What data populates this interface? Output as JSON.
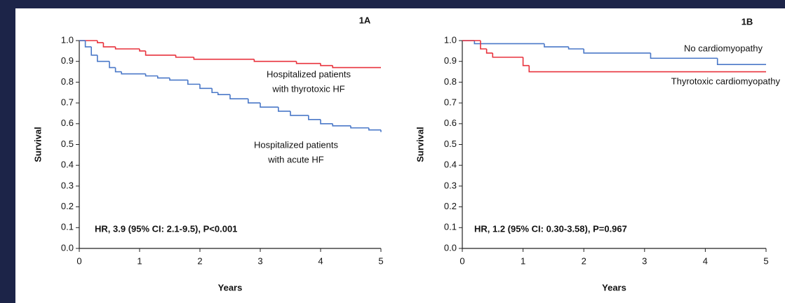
{
  "chart_data": [
    {
      "type": "step",
      "title": "1A",
      "ylabel": "Survival",
      "xlabel": "Years",
      "annotation": "HR, 3.9 (95% CI: 2.1-9.5), P<0.001",
      "xlim": [
        0,
        5
      ],
      "ylim": [
        0,
        1
      ],
      "xticks": [
        0,
        1,
        2,
        3,
        4,
        5
      ],
      "yticks": [
        {
          "value": 0,
          "label": "0.0"
        },
        0.1,
        0.2,
        0.3,
        0.4,
        0.5,
        0.6,
        0.7,
        0.8,
        0.9,
        {
          "value": 1,
          "label": "1.0"
        }
      ],
      "series": [
        {
          "label": [
            "Hospitalized patients",
            "with thyrotoxic HF"
          ],
          "color": "#e8323c",
          "x": [
            0,
            0.3,
            0.4,
            0.6,
            1.0,
            1.1,
            1.6,
            1.9,
            2.9,
            3.6,
            4.0,
            4.2,
            5.0
          ],
          "values": [
            1.0,
            0.99,
            0.97,
            0.96,
            0.95,
            0.93,
            0.92,
            0.91,
            0.9,
            0.89,
            0.88,
            0.87,
            0.87
          ]
        },
        {
          "label": [
            "Hospitalized patients",
            "with acute HF"
          ],
          "color": "#4a78c8",
          "x": [
            0,
            0.1,
            0.2,
            0.3,
            0.5,
            0.6,
            0.7,
            1.1,
            1.3,
            1.5,
            1.8,
            2.0,
            2.2,
            2.3,
            2.5,
            2.8,
            3.0,
            3.3,
            3.5,
            3.8,
            4.0,
            4.2,
            4.5,
            4.8,
            5.0
          ],
          "values": [
            1.0,
            0.97,
            0.93,
            0.9,
            0.87,
            0.85,
            0.84,
            0.83,
            0.82,
            0.81,
            0.79,
            0.77,
            0.75,
            0.74,
            0.72,
            0.7,
            0.68,
            0.66,
            0.64,
            0.62,
            0.6,
            0.59,
            0.58,
            0.57,
            0.56
          ]
        }
      ]
    },
    {
      "type": "step",
      "title": "1B",
      "ylabel": "Survival",
      "xlabel": "Years",
      "annotation": "HR, 1.2  (95% CI: 0.30-3.58), P=0.967",
      "xlim": [
        0,
        5
      ],
      "ylim": [
        0,
        1
      ],
      "xticks": [
        0,
        1,
        2,
        3,
        4,
        5
      ],
      "yticks": [
        {
          "value": 0,
          "label": "0.0"
        },
        0.1,
        0.2,
        0.3,
        0.4,
        0.5,
        0.6,
        0.7,
        0.8,
        0.9,
        {
          "value": 1,
          "label": "1.0"
        }
      ],
      "series": [
        {
          "label": [
            "No cardiomyopathy"
          ],
          "color": "#4a78c8",
          "x": [
            0,
            0.2,
            1.35,
            1.75,
            2.0,
            3.1,
            4.2,
            5.0
          ],
          "values": [
            1.0,
            0.985,
            0.97,
            0.96,
            0.94,
            0.915,
            0.885,
            0.885
          ]
        },
        {
          "label": [
            "Thyrotoxic cardiomyopathy"
          ],
          "color": "#e8323c",
          "x": [
            0,
            0.3,
            0.4,
            0.5,
            1.0,
            1.1,
            5.0
          ],
          "values": [
            1.0,
            0.96,
            0.94,
            0.92,
            0.88,
            0.85,
            0.85
          ]
        }
      ]
    }
  ]
}
